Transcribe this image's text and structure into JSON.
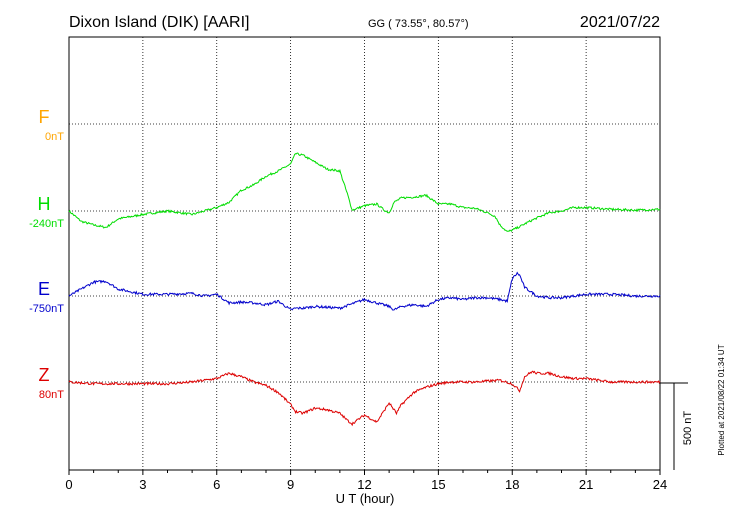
{
  "header": {
    "station": "Dixon Island (DIK)  [AARI]",
    "coords": "GG ( 73.55°,  80.57°)",
    "date": "2021/07/22"
  },
  "footer": {
    "plotted": "Plotted at 2021/08/22 01:34 UT"
  },
  "chart_data": {
    "type": "line",
    "xlabel": "U T (hour)",
    "xlim": [
      0,
      24
    ],
    "xticks": [
      0,
      3,
      6,
      9,
      12,
      15,
      18,
      21,
      24
    ],
    "scale_bar": {
      "label": "500 nT",
      "value_nT": 500
    },
    "colors": {
      "F": "#ffa500",
      "H": "#00dd00",
      "E": "#0000cc",
      "Z": "#dd0000"
    },
    "series": [
      {
        "name": "F",
        "baseline": "0nT",
        "color": "#ffa500",
        "x": [],
        "y": []
      },
      {
        "name": "H",
        "baseline": "-240nT",
        "color": "#00dd00",
        "x": [
          0,
          0.5,
          1,
          1.5,
          2,
          3,
          4,
          5,
          5.5,
          6,
          6.5,
          7,
          7.5,
          8,
          8.5,
          9,
          9.2,
          9.5,
          10,
          10.5,
          11,
          11.3,
          11.5,
          12,
          12.5,
          12.8,
          13,
          13.2,
          13.5,
          14,
          14.5,
          15,
          15.5,
          16,
          16.5,
          17,
          17.3,
          17.5,
          17.8,
          18,
          18.3,
          18.7,
          19,
          19.5,
          20,
          20.5,
          21,
          22,
          23,
          24
        ],
        "y": [
          0,
          -60,
          -80,
          -95,
          -45,
          -20,
          0,
          -20,
          0,
          20,
          50,
          120,
          150,
          200,
          230,
          270,
          330,
          320,
          280,
          240,
          230,
          100,
          5,
          30,
          40,
          5,
          -10,
          50,
          75,
          80,
          90,
          40,
          40,
          20,
          15,
          -10,
          -30,
          -80,
          -120,
          -110,
          -90,
          -60,
          -40,
          -10,
          0,
          20,
          20,
          10,
          5,
          10
        ]
      },
      {
        "name": "E",
        "baseline": "-750nT",
        "color": "#0000cc",
        "x": [
          0,
          0.5,
          1,
          1.5,
          2,
          3,
          4,
          5,
          5.5,
          6,
          6.5,
          7,
          7.5,
          8,
          8.5,
          9,
          9.2,
          9.5,
          10,
          10.5,
          11,
          11.5,
          12,
          12.5,
          13,
          13.2,
          13.5,
          14,
          14.5,
          15,
          15.5,
          16,
          16.5,
          17,
          17.5,
          17.8,
          18,
          18.2,
          18.3,
          18.5,
          19,
          19.5,
          20,
          20.5,
          21,
          22,
          23,
          24
        ],
        "y": [
          0,
          40,
          80,
          85,
          40,
          10,
          10,
          15,
          0,
          10,
          -40,
          -35,
          -40,
          -50,
          -30,
          -80,
          -70,
          -70,
          -60,
          -65,
          -70,
          -45,
          -20,
          -40,
          -60,
          -80,
          -60,
          -50,
          -60,
          -20,
          -10,
          -20,
          -10,
          -10,
          -20,
          -30,
          100,
          130,
          120,
          50,
          0,
          -10,
          -10,
          0,
          10,
          10,
          0,
          0
        ]
      },
      {
        "name": "Z",
        "baseline": "80nT",
        "color": "#dd0000",
        "x": [
          0,
          1,
          2,
          3,
          4,
          5,
          5.5,
          6,
          6.5,
          7,
          7.5,
          8,
          8.5,
          9,
          9.2,
          9.5,
          10,
          10.5,
          11,
          11.3,
          11.5,
          12,
          12.5,
          13,
          13.3,
          13.5,
          14,
          14.5,
          15,
          15.5,
          16,
          16.5,
          17,
          17.5,
          18,
          18.3,
          18.5,
          18.8,
          19,
          19.5,
          20,
          20.5,
          21,
          22,
          23,
          24
        ],
        "y": [
          0,
          -10,
          -10,
          -10,
          -10,
          0,
          10,
          20,
          50,
          30,
          0,
          -20,
          -60,
          -130,
          -170,
          -180,
          -150,
          -160,
          -180,
          -220,
          -240,
          -190,
          -230,
          -120,
          -180,
          -130,
          -60,
          -30,
          -10,
          0,
          0,
          0,
          5,
          10,
          -10,
          -50,
          30,
          60,
          50,
          50,
          30,
          20,
          20,
          0,
          0,
          0
        ]
      }
    ]
  }
}
